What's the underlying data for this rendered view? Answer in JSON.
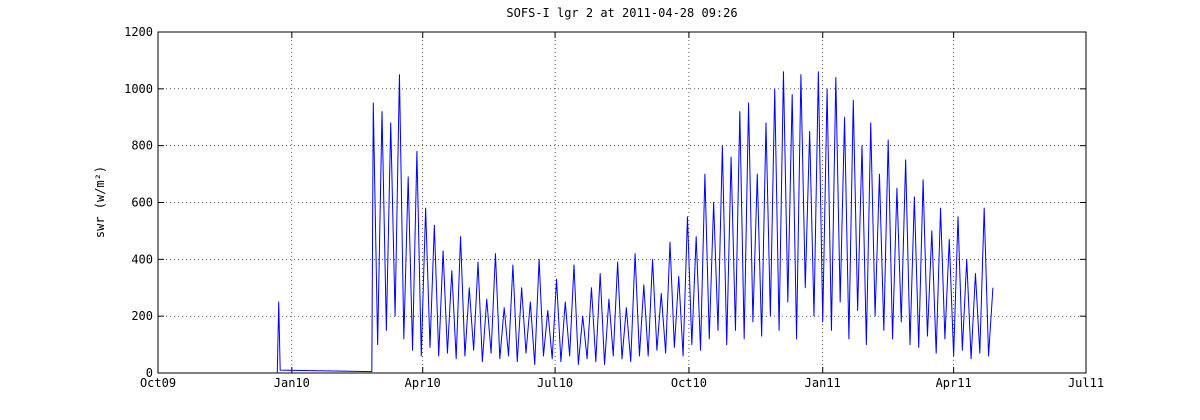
{
  "chart_data": {
    "type": "line",
    "title": "SOFS-I lgr 2 at 2011-04-28 09:26",
    "y_label": "swr (w/m²)",
    "xlim": [
      "2009-10-01",
      "2011-07-01"
    ],
    "xticks": [
      {
        "value": "2009-10-01",
        "label": "Oct09"
      },
      {
        "value": "2010-01-01",
        "label": "Jan10"
      },
      {
        "value": "2010-04-01",
        "label": "Apr10"
      },
      {
        "value": "2010-07-01",
        "label": "Jul10"
      },
      {
        "value": "2010-10-01",
        "label": "Oct10"
      },
      {
        "value": "2011-01-01",
        "label": "Jan11"
      },
      {
        "value": "2011-04-01",
        "label": "Apr11"
      },
      {
        "value": "2011-07-01",
        "label": "Jul11"
      }
    ],
    "ylim": [
      0,
      1200
    ],
    "yticks": [
      0,
      200,
      400,
      600,
      800,
      1000,
      1200
    ],
    "grid": true,
    "series": [
      {
        "color": "#0000ff",
        "x": [
          "2009-12-22",
          "2009-12-23",
          "2009-12-24",
          "2010-02-25",
          "2010-02-26",
          "2010-03-01",
          "2010-03-04",
          "2010-03-07",
          "2010-03-10",
          "2010-03-13",
          "2010-03-16",
          "2010-03-19",
          "2010-03-22",
          "2010-03-25",
          "2010-03-28",
          "2010-03-31",
          "2010-04-03",
          "2010-04-06",
          "2010-04-09",
          "2010-04-12",
          "2010-04-15",
          "2010-04-18",
          "2010-04-21",
          "2010-04-24",
          "2010-04-27",
          "2010-04-30",
          "2010-05-03",
          "2010-05-06",
          "2010-05-09",
          "2010-05-12",
          "2010-05-15",
          "2010-05-18",
          "2010-05-21",
          "2010-05-24",
          "2010-05-27",
          "2010-05-30",
          "2010-06-02",
          "2010-06-05",
          "2010-06-08",
          "2010-06-11",
          "2010-06-14",
          "2010-06-17",
          "2010-06-20",
          "2010-06-23",
          "2010-06-26",
          "2010-06-29",
          "2010-07-02",
          "2010-07-05",
          "2010-07-08",
          "2010-07-11",
          "2010-07-14",
          "2010-07-17",
          "2010-07-20",
          "2010-07-23",
          "2010-07-26",
          "2010-07-29",
          "2010-08-01",
          "2010-08-04",
          "2010-08-07",
          "2010-08-10",
          "2010-08-13",
          "2010-08-16",
          "2010-08-19",
          "2010-08-22",
          "2010-08-25",
          "2010-08-28",
          "2010-08-31",
          "2010-09-03",
          "2010-09-06",
          "2010-09-09",
          "2010-09-12",
          "2010-09-15",
          "2010-09-18",
          "2010-09-21",
          "2010-09-24",
          "2010-09-27",
          "2010-09-30",
          "2010-10-03",
          "2010-10-06",
          "2010-10-09",
          "2010-10-12",
          "2010-10-15",
          "2010-10-18",
          "2010-10-21",
          "2010-10-24",
          "2010-10-27",
          "2010-10-30",
          "2010-11-02",
          "2010-11-05",
          "2010-11-08",
          "2010-11-11",
          "2010-11-14",
          "2010-11-17",
          "2010-11-20",
          "2010-11-23",
          "2010-11-26",
          "2010-11-29",
          "2010-12-02",
          "2010-12-05",
          "2010-12-08",
          "2010-12-11",
          "2010-12-14",
          "2010-12-17",
          "2010-12-20",
          "2010-12-23",
          "2010-12-26",
          "2010-12-29",
          "2011-01-01",
          "2011-01-04",
          "2011-01-07",
          "2011-01-10",
          "2011-01-13",
          "2011-01-16",
          "2011-01-19",
          "2011-01-22",
          "2011-01-25",
          "2011-01-28",
          "2011-01-31",
          "2011-02-03",
          "2011-02-06",
          "2011-02-09",
          "2011-02-12",
          "2011-02-15",
          "2011-02-18",
          "2011-02-21",
          "2011-02-24",
          "2011-02-27",
          "2011-03-02",
          "2011-03-05",
          "2011-03-08",
          "2011-03-11",
          "2011-03-14",
          "2011-03-17",
          "2011-03-20",
          "2011-03-23",
          "2011-03-26",
          "2011-03-29",
          "2011-04-01",
          "2011-04-04",
          "2011-04-07",
          "2011-04-10",
          "2011-04-13",
          "2011-04-16",
          "2011-04-19",
          "2011-04-22",
          "2011-04-25",
          "2011-04-28"
        ],
        "values": [
          0,
          250,
          10,
          5,
          950,
          100,
          920,
          150,
          880,
          200,
          1050,
          120,
          690,
          80,
          780,
          60,
          580,
          90,
          520,
          60,
          430,
          70,
          360,
          50,
          480,
          60,
          300,
          80,
          390,
          40,
          260,
          70,
          420,
          50,
          230,
          60,
          380,
          40,
          300,
          70,
          250,
          30,
          400,
          60,
          220,
          50,
          330,
          40,
          250,
          60,
          380,
          30,
          200,
          50,
          300,
          40,
          350,
          30,
          260,
          60,
          390,
          50,
          230,
          40,
          420,
          60,
          310,
          60,
          400,
          80,
          280,
          70,
          460,
          90,
          340,
          60,
          550,
          100,
          480,
          80,
          700,
          120,
          600,
          150,
          800,
          100,
          760,
          150,
          920,
          120,
          950,
          180,
          700,
          130,
          880,
          200,
          1000,
          150,
          1060,
          250,
          980,
          120,
          1050,
          300,
          850,
          200,
          1060,
          180,
          1000,
          150,
          1040,
          250,
          900,
          120,
          960,
          220,
          800,
          100,
          880,
          200,
          700,
          150,
          820,
          120,
          650,
          180,
          750,
          100,
          620,
          90,
          680,
          130,
          500,
          70,
          580,
          120,
          470,
          60,
          550,
          80,
          400,
          50,
          350,
          70,
          580,
          60,
          300
        ]
      }
    ]
  }
}
